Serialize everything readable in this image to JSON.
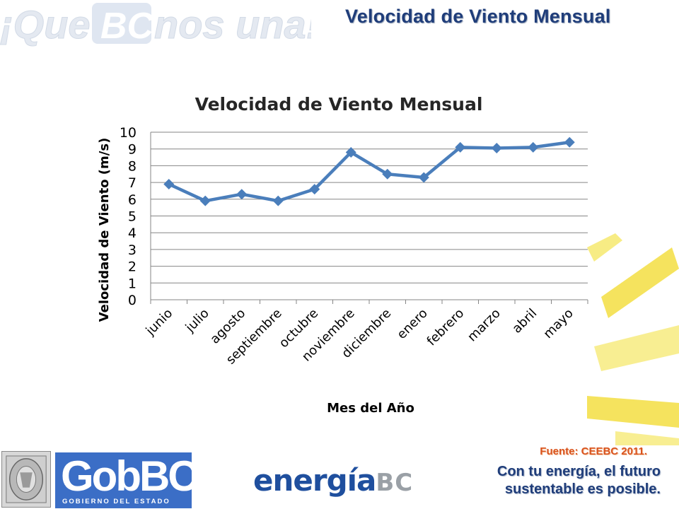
{
  "header": {
    "slogan_logo_text": "¡QueBCnos una!",
    "slide_title": "Velocidad de Viento Mensual"
  },
  "footer": {
    "source": "Fuente: CEEBC 2011.",
    "slogan_line1": "Con tu energía, el futuro",
    "slogan_line2": "sustentable es posible.",
    "gob_logo_main": "GobBC",
    "gob_logo_sub": "GOBIERNO DEL ESTADO",
    "energia_logo_main": "energía",
    "energia_logo_suffix": "BC"
  },
  "colors": {
    "title_blue": "#1f3d7a",
    "line_blue": "#4a7ebb",
    "source_orange": "#d9531e",
    "decor_yellow": "#f5e66a"
  },
  "chart_data": {
    "type": "line",
    "title": "Velocidad de Viento Mensual",
    "xlabel": "Mes del Año",
    "ylabel": "Velocidad de Viento (m/s)",
    "ylim": [
      0,
      10
    ],
    "yticks": [
      "0",
      "1",
      "2",
      "3",
      "4",
      "5",
      "6",
      "7",
      "8",
      "9",
      "10"
    ],
    "grid": true,
    "legend": "none",
    "marker": "diamond",
    "categories": [
      "junio",
      "julio",
      "agosto",
      "septiembre",
      "octubre",
      "noviembre",
      "diciembre",
      "enero",
      "febrero",
      "marzo",
      "abril",
      "mayo"
    ],
    "series": [
      {
        "values": [
          6.9,
          5.9,
          6.3,
          5.9,
          6.6,
          8.8,
          7.5,
          7.3,
          9.1,
          9.05,
          9.1,
          9.4
        ]
      }
    ]
  }
}
